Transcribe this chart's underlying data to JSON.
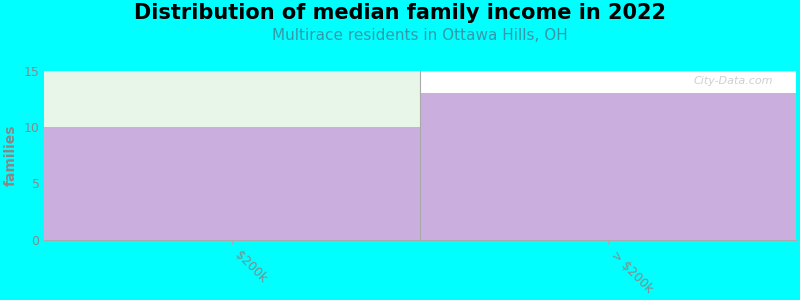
{
  "title": "Distribution of median family income in 2022",
  "subtitle": "Multirace residents in Ottawa Hills, OH",
  "categories": [
    "$200k",
    "> $200k"
  ],
  "values": [
    10,
    13
  ],
  "ylim": [
    0,
    15
  ],
  "yticks": [
    0,
    5,
    10,
    15
  ],
  "bar_color": "#c9aede",
  "unfilled_color": "#e8f5e9",
  "background_color": "#00FFFF",
  "plot_bg_color": "#FFFFFF",
  "ylabel": "families",
  "title_fontsize": 15,
  "subtitle_fontsize": 11,
  "subtitle_color": "#3399AA",
  "watermark": "City-Data.com",
  "tick_color": "#888888",
  "label_color": "#888888"
}
